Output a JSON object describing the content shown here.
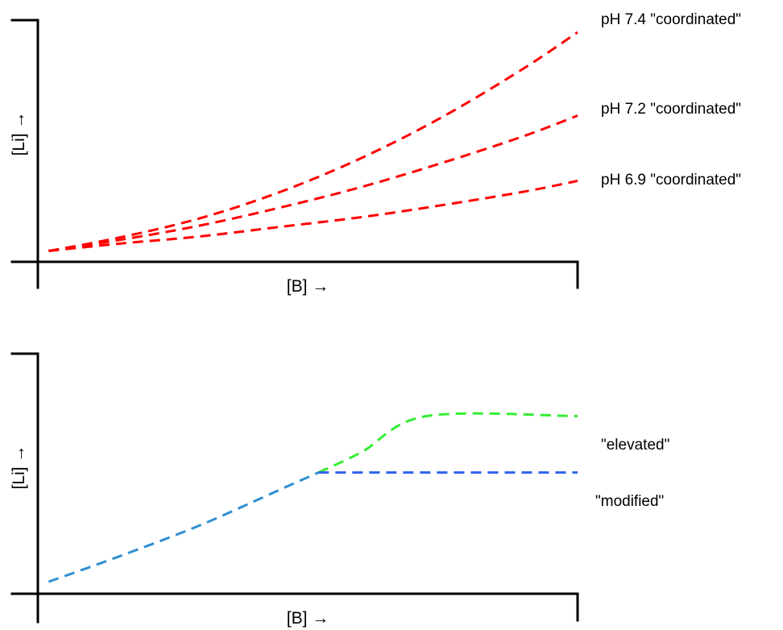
{
  "chart_data": [
    {
      "type": "line",
      "xlabel": "[B] →",
      "ylabel": "[Li] →",
      "xlim": [
        0,
        10
      ],
      "ylim": [
        0,
        10
      ],
      "series": [
        {
          "name": "pH 7.4 \"coordinated\"",
          "color": "#ff0000",
          "x": [
            0.2,
            1.5,
            3.0,
            4.5,
            6.0,
            7.5,
            9.0,
            10.0
          ],
          "y": [
            0.45,
            1.0,
            1.8,
            2.9,
            4.3,
            6.0,
            8.0,
            9.5
          ]
        },
        {
          "name": "pH 7.2 \"coordinated\"",
          "color": "#ff0000",
          "x": [
            0.2,
            1.5,
            3.0,
            4.5,
            6.0,
            7.5,
            9.0,
            10.0
          ],
          "y": [
            0.45,
            0.9,
            1.5,
            2.25,
            3.1,
            4.1,
            5.2,
            6.05
          ]
        },
        {
          "name": "pH 6.9 \"coordinated\"",
          "color": "#ff0000",
          "x": [
            0.2,
            1.5,
            3.0,
            4.5,
            6.0,
            7.5,
            9.0,
            10.0
          ],
          "y": [
            0.45,
            0.75,
            1.05,
            1.45,
            1.85,
            2.35,
            2.9,
            3.35
          ]
        }
      ]
    },
    {
      "type": "line",
      "xlabel": "[B] →",
      "ylabel": "[Li] →",
      "xlim": [
        0,
        10
      ],
      "ylim": [
        0,
        10
      ],
      "series": [
        {
          "name": "",
          "color": "#2f8fd0",
          "x": [
            0.2,
            1.5,
            3.0,
            4.5,
            5.2
          ],
          "y": [
            0.5,
            1.55,
            2.85,
            4.35,
            5.05
          ]
        },
        {
          "name": "\"elevated\"",
          "color": "#33ee33",
          "x": [
            5.2,
            6.0,
            7.2,
            10.0
          ],
          "y": [
            5.05,
            5.9,
            7.4,
            7.4
          ]
        },
        {
          "name": "\"modified\"",
          "color": "#3366ee",
          "x": [
            5.2,
            10.0
          ],
          "y": [
            5.05,
            5.05
          ]
        }
      ]
    }
  ]
}
